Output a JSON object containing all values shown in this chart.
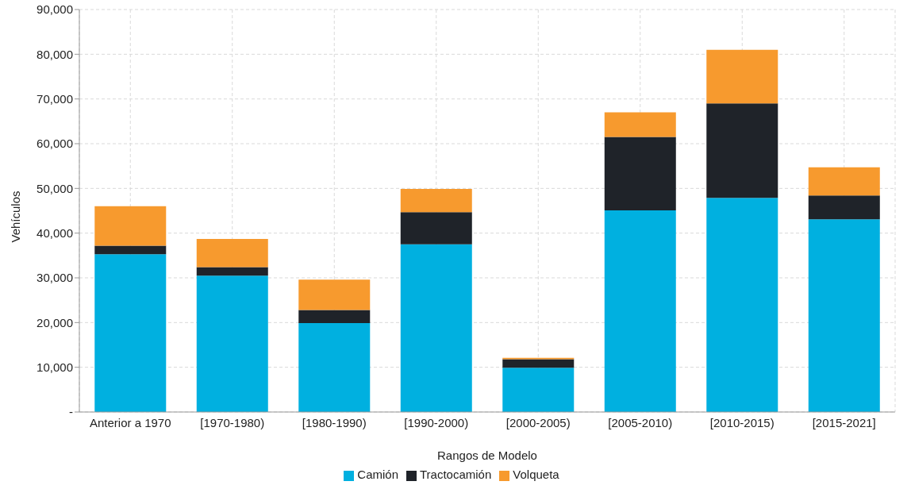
{
  "chart_data": {
    "type": "bar",
    "stacked": true,
    "xlabel": "Rangos de Modelo",
    "ylabel": "Vehículos",
    "categories": [
      "Anterior a 1970",
      "[1970-1980)",
      "[1980-1990)",
      "[1990-2000)",
      "[2000-2005)",
      "[2005-2010)",
      "[2010-2015)",
      "[2015-2021]"
    ],
    "series": [
      {
        "name": "Camión",
        "color": "#00b0e0",
        "values": [
          35300,
          30500,
          19900,
          37500,
          9900,
          45100,
          47900,
          43100
        ]
      },
      {
        "name": "Tractocamión",
        "color": "#1f2329",
        "values": [
          1900,
          1900,
          2900,
          7200,
          1900,
          16400,
          21100,
          5300
        ]
      },
      {
        "name": "Volqueta",
        "color": "#f79a2e",
        "values": [
          8800,
          6300,
          6800,
          5200,
          300,
          5500,
          12000,
          6300
        ]
      }
    ],
    "ylim": [
      0,
      90000
    ],
    "yticks": [
      {
        "value": 0,
        "label": "-"
      },
      {
        "value": 10000,
        "label": "10,000"
      },
      {
        "value": 20000,
        "label": "20,000"
      },
      {
        "value": 30000,
        "label": "30,000"
      },
      {
        "value": 40000,
        "label": "40,000"
      },
      {
        "value": 50000,
        "label": "50,000"
      },
      {
        "value": 60000,
        "label": "60,000"
      },
      {
        "value": 70000,
        "label": "70,000"
      },
      {
        "value": 80000,
        "label": "80,000"
      },
      {
        "value": 90000,
        "label": "90,000"
      }
    ],
    "grid": true,
    "legend": "bottom"
  }
}
